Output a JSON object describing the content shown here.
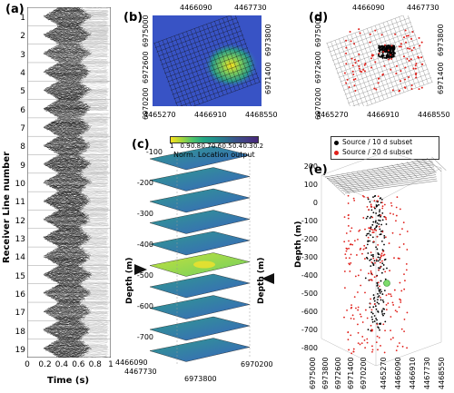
{
  "panels": {
    "a": {
      "label": "(a)",
      "ylabel": "Receiver Line number",
      "xlabel": "Time (s)",
      "lines": [
        "1",
        "2",
        "3",
        "4",
        "5",
        "6",
        "7",
        "8",
        "9",
        "10",
        "11",
        "12",
        "13",
        "14",
        "15",
        "16",
        "17",
        "18",
        "19"
      ],
      "xticks": [
        "0",
        "0.2",
        "0.4",
        "0.6",
        "0.8",
        "1"
      ],
      "xtick_values": [
        0,
        0.2,
        0.4,
        0.6,
        0.8,
        1
      ]
    },
    "b": {
      "label": "(b)",
      "top_ticks": [
        "4466090",
        "4467730"
      ],
      "bottom_ticks": [
        "4465270",
        "4466910",
        "4468550"
      ],
      "left_ticks": [
        "6975000",
        "6972600",
        "6970200"
      ],
      "right_ticks": [
        "6973800",
        "6971400"
      ]
    },
    "c": {
      "label": "(c)",
      "colorbar_title": "Norm. Location output",
      "colorbar_ticks": [
        "1",
        "0.9",
        "0.8",
        "0.7",
        "0.6",
        "0.5",
        "0.4",
        "0.3",
        "0.2"
      ],
      "depth_ticks": [
        "-100",
        "-200",
        "-300",
        "-400",
        "-500",
        "-600",
        "-700"
      ],
      "depth_label_left": "Depth (m)",
      "depth_label_right": "Depth (m)",
      "bottom_ticks": [
        "4466090",
        "4467730",
        "6973800",
        "6970200"
      ],
      "highlight_depth": -480
    },
    "d": {
      "label": "(d)",
      "top_ticks": [
        "4466090",
        "4467730"
      ],
      "bottom_ticks": [
        "4465270",
        "4466910",
        "4468550"
      ],
      "left_ticks": [
        "6975000",
        "6972600",
        "6970200"
      ],
      "right_ticks": [
        "6973800",
        "6971400"
      ]
    },
    "e": {
      "label": "(e)",
      "legend": [
        "Source / 10 d subset",
        "Source / 20 d subset"
      ],
      "legend_colors": [
        "#000000",
        "#e0201b"
      ],
      "ylabel": "Depth (m)",
      "yticks": [
        "200",
        "100",
        "0",
        "-100",
        "-200",
        "-300",
        "-400",
        "-500",
        "-600",
        "-700",
        "-800"
      ],
      "ytick_values": [
        200,
        100,
        0,
        -100,
        -200,
        -300,
        -400,
        -500,
        -600,
        -700,
        -800
      ],
      "bottom_left_ticks": [
        "6975000",
        "6973800",
        "6972600",
        "6971400",
        "6970200"
      ],
      "bottom_right_ticks": [
        "4465270",
        "4466090",
        "4466910",
        "4467730",
        "4468550"
      ]
    }
  },
  "colors": {
    "yellow": "#f9e11e",
    "green": "#3fbf78",
    "teal": "#21908d",
    "blue": "#3b52c4",
    "navy": "#2c1f8c",
    "red": "#e0201b"
  }
}
